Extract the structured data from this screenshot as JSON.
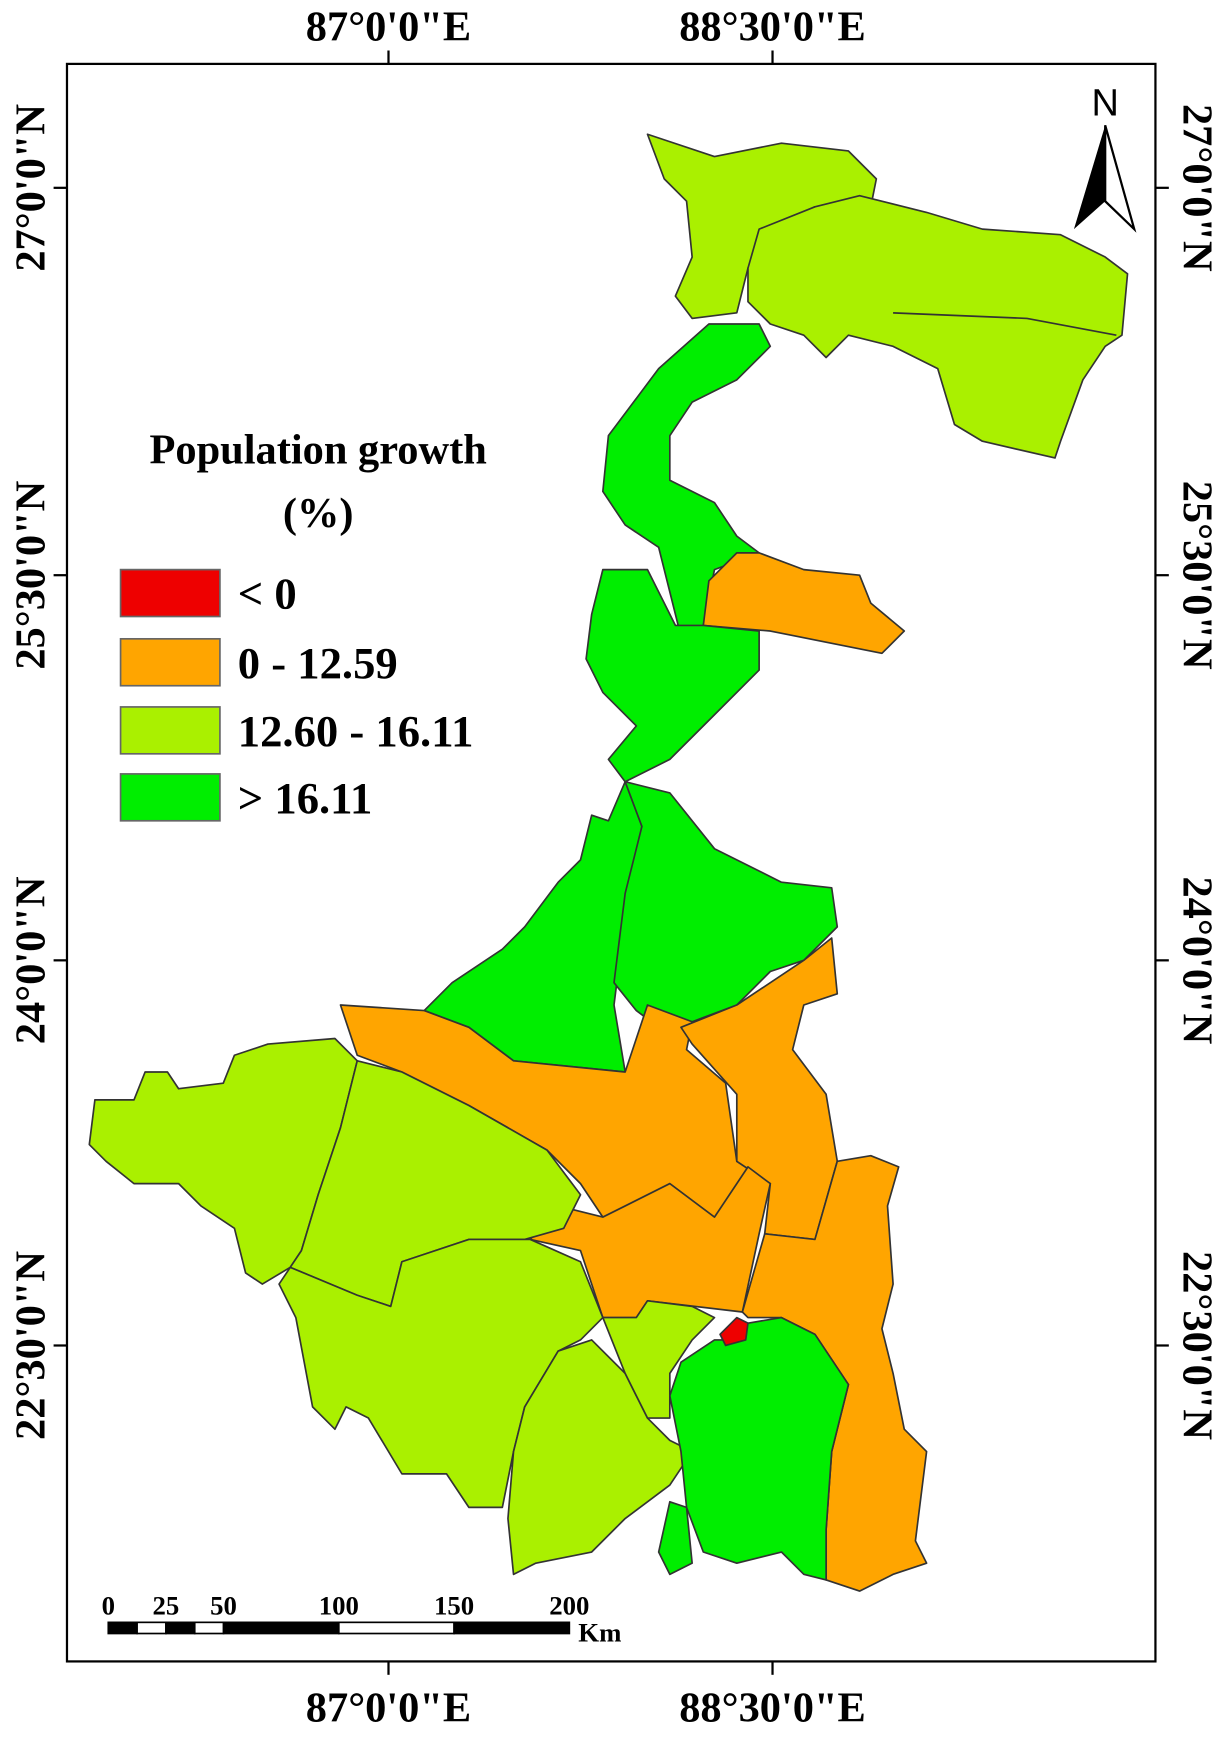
{
  "axes": {
    "top": [
      "87°0'0\"E",
      "88°30'0\"E"
    ],
    "bottom": [
      "87°0'0\"E",
      "88°30'0\"E"
    ],
    "left": [
      "27°0'0\"N",
      "25°30'0\"N",
      "24°0'0\"N",
      "22°30'0\"N"
    ],
    "right": [
      "27°0'0\"N",
      "25°30'0\"N",
      "24°0'0\"N",
      "22°30'0\"N"
    ]
  },
  "legend": {
    "title": "Population growth",
    "unit": "(%)",
    "items": [
      {
        "label": "< 0",
        "color": "#ee0000"
      },
      {
        "label": "0 - 12.59",
        "color": "#ffa500"
      },
      {
        "label": "12.60 - 16.11",
        "color": "#aaf000"
      },
      {
        "label": "> 16.11",
        "color": "#00ee00"
      }
    ]
  },
  "scale_bar": {
    "ticks": [
      0,
      25,
      50,
      100,
      150,
      200
    ],
    "unit": "Km"
  },
  "north_arrow": "N"
}
